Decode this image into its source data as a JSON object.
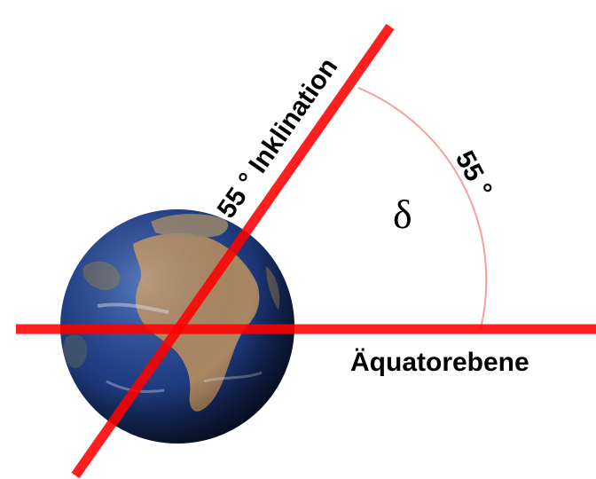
{
  "diagram": {
    "inclination_label": "55 ° Inklination",
    "angle_label": "55 °",
    "angle_symbol": "δ",
    "plane_label": "Äquatorebene",
    "colors": {
      "line": "#ff0000",
      "arc": "#f4a0a0",
      "text": "#000000",
      "ocean_dark": "#0b1a4a",
      "ocean_mid": "#23418a",
      "land": "#c8a070"
    },
    "icons": {
      "globe": "earth-globe-icon"
    }
  }
}
